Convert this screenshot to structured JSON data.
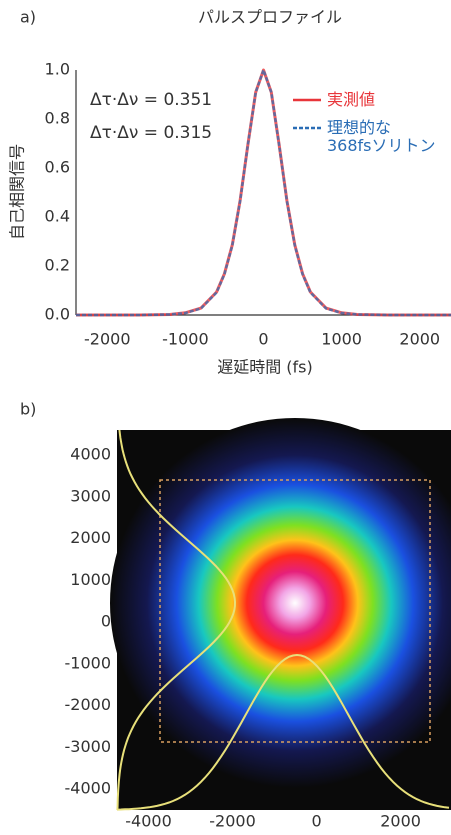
{
  "chart_data": [
    {
      "type": "line",
      "panel_label": "a)",
      "title": "パルスプロファイル",
      "x_label": "遅延時間 (fs)",
      "y_label": "自己相関信号",
      "x": [
        -2400,
        -2000,
        -1600,
        -1200,
        -1000,
        -800,
        -600,
        -500,
        -400,
        -300,
        -200,
        -100,
        0,
        100,
        200,
        300,
        400,
        500,
        600,
        800,
        1000,
        1200,
        1600,
        2000,
        2400
      ],
      "series": [
        {
          "name": "実測値",
          "color": "#e8353a",
          "dash": false,
          "values": [
            0,
            0,
            0,
            0.002,
            0.009,
            0.028,
            0.094,
            0.168,
            0.286,
            0.467,
            0.696,
            0.909,
            1.0,
            0.909,
            0.696,
            0.467,
            0.286,
            0.168,
            0.094,
            0.028,
            0.009,
            0.002,
            0,
            0,
            0
          ]
        },
        {
          "name": "理想的な\n368fsソリトン",
          "color": "#2a6db5",
          "dash": true,
          "values": [
            0,
            0,
            0,
            0.002,
            0.008,
            0.027,
            0.092,
            0.166,
            0.284,
            0.465,
            0.695,
            0.909,
            1.0,
            0.909,
            0.695,
            0.465,
            0.284,
            0.166,
            0.092,
            0.027,
            0.008,
            0.002,
            0,
            0,
            0
          ]
        }
      ],
      "annotations": [
        {
          "text": "Δτ·Δν = 0.351",
          "color": "#e8353a"
        },
        {
          "text": "Δτ·Δν = 0.315",
          "color": "#2a6db5"
        }
      ],
      "xlim": [
        -2400,
        2400
      ],
      "ylim": [
        0,
        1.0
      ],
      "xticks": [
        -2000,
        -1000,
        0,
        1000,
        2000
      ],
      "yticks": [
        {
          "value": 0,
          "label": "0.0"
        },
        0.2,
        0.4,
        0.6,
        0.8,
        {
          "value": 1.0,
          "label": "1.0"
        }
      ]
    },
    {
      "type": "image",
      "panel_label": "b)",
      "xlim": [
        -4750,
        3200
      ],
      "ylim": [
        -4500,
        4600
      ],
      "xticks": [
        -4000,
        -2000,
        0,
        2000
      ],
      "yticks": [
        4000,
        3000,
        2000,
        1000,
        0,
        -1000,
        -2000,
        -3000,
        -4000
      ]
    }
  ]
}
